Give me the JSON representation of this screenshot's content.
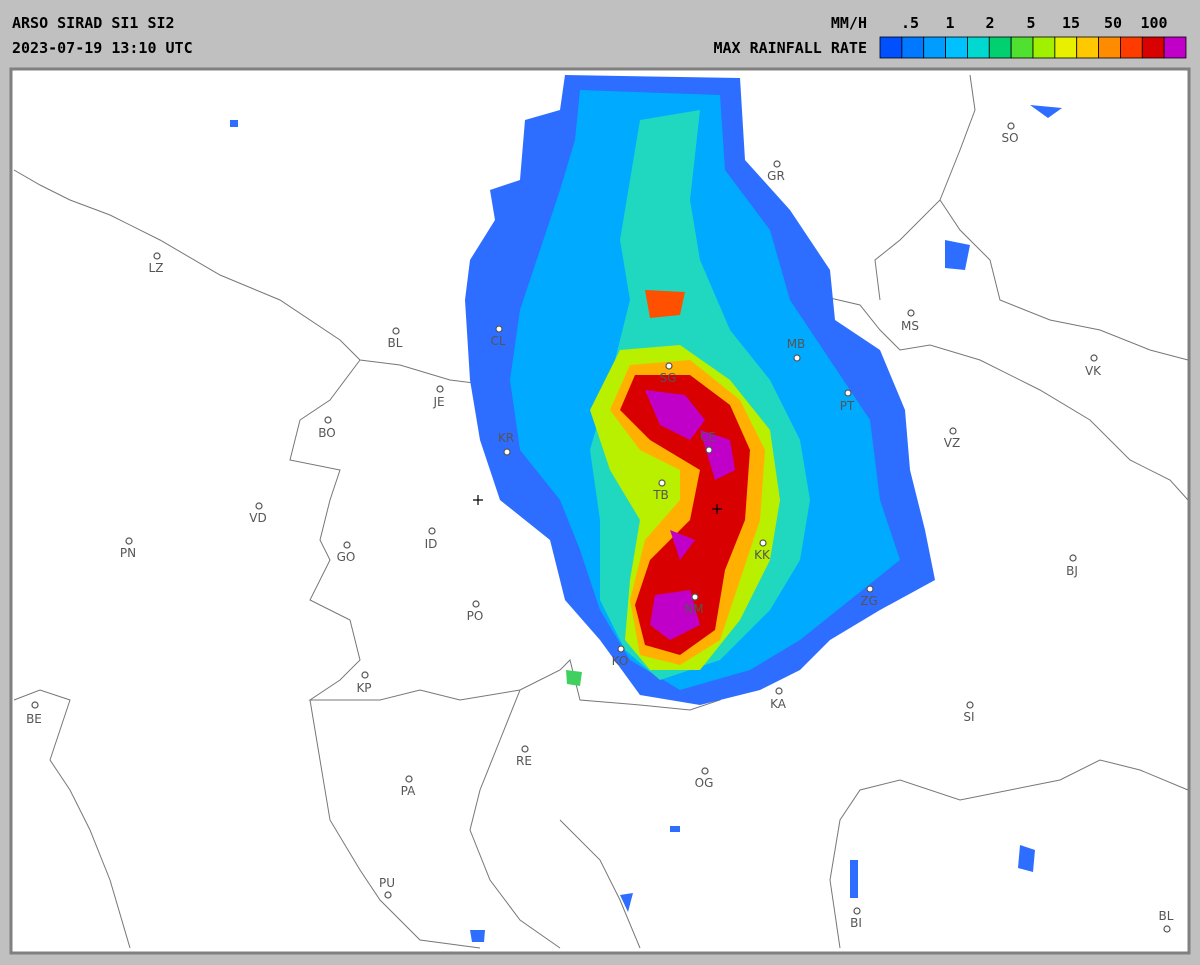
{
  "header": {
    "title": "ARSO SIRAD SI1 SI2",
    "timestamp": "2023-07-19 13:10 UTC"
  },
  "legend": {
    "unit": "MM/H",
    "label": "MAX RAINFALL RATE",
    "scale_labels": [
      ".5",
      "1",
      "2",
      "5",
      "15",
      "50",
      "100"
    ],
    "colors": [
      "#0050ff",
      "#0078ff",
      "#009cff",
      "#00c0ff",
      "#00d8d0",
      "#00d070",
      "#50e030",
      "#a0f000",
      "#e8f000",
      "#ffc800",
      "#ff8c00",
      "#ff3c00",
      "#d80000",
      "#c000c8"
    ]
  },
  "map": {
    "cities": [
      "LZ",
      "BL",
      "CL",
      "JE",
      "BO",
      "KR",
      "VD",
      "PN",
      "GO",
      "ID",
      "PO",
      "TB",
      "KK",
      "NM",
      "KO",
      "KP",
      "BE",
      "RE",
      "PA",
      "OG",
      "KA",
      "SI",
      "ZG",
      "BJ",
      "VZ",
      "VK",
      "MS",
      "MB",
      "PT",
      "GR",
      "SO",
      "BI",
      "BL",
      "CE",
      "SG",
      "PU"
    ]
  }
}
